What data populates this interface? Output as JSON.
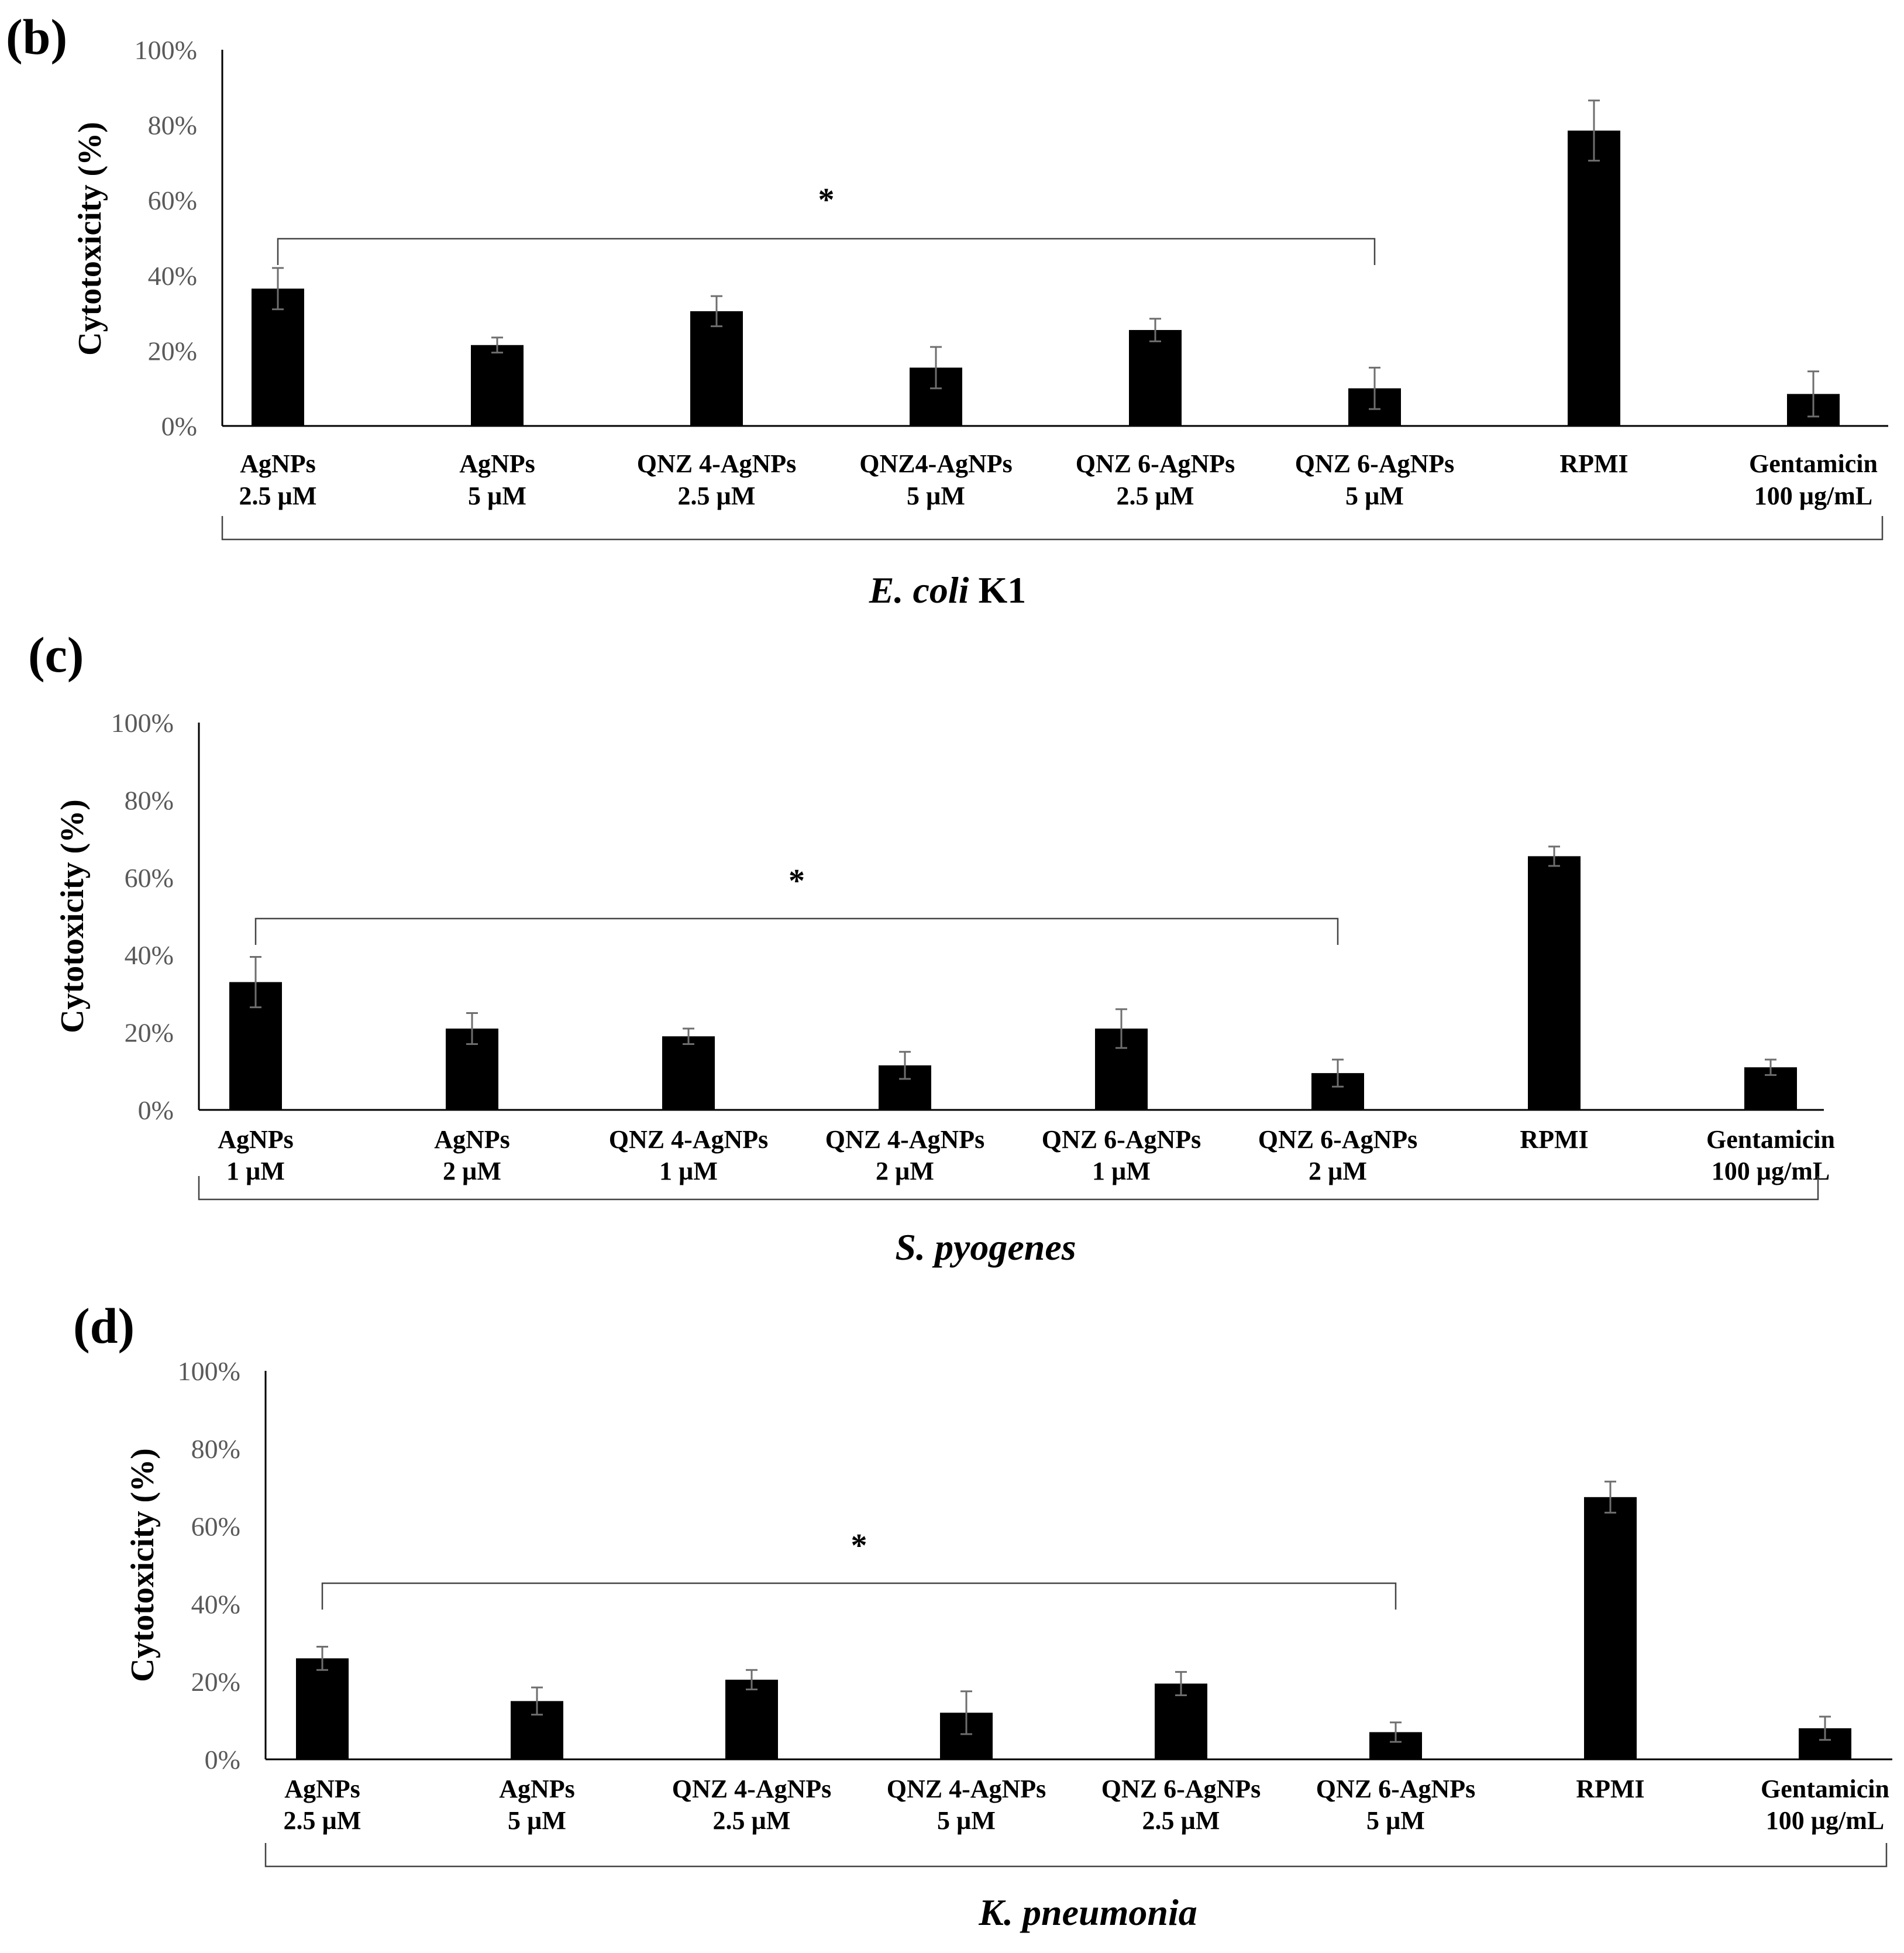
{
  "chart_data": [
    {
      "type": "bar",
      "panel_label": "(b)",
      "organism": {
        "italic": "E. coli",
        "plain": " K1"
      },
      "ylabel": "Cytotoxicity (%)",
      "yticks": [
        "0%",
        "20%",
        "40%",
        "60%",
        "80%",
        "100%"
      ],
      "ylim": [
        0,
        100
      ],
      "categories": [
        [
          "AgNPs",
          "2.5 µM"
        ],
        [
          "AgNPs",
          "5 µM"
        ],
        [
          "QNZ 4-AgNPs",
          "2.5 µM"
        ],
        [
          "QNZ4-AgNPs",
          "5 µM"
        ],
        [
          "QNZ 6-AgNPs",
          "2.5 µM"
        ],
        [
          "QNZ 6-AgNPs",
          "5 µM"
        ],
        [
          "RPMI",
          ""
        ],
        [
          "Gentamicin",
          "100 µg/mL"
        ]
      ],
      "values": [
        36.5,
        21.5,
        30.5,
        15.5,
        25.5,
        10.0,
        78.5,
        8.5
      ],
      "errors": [
        5.5,
        2.0,
        4.0,
        5.5,
        3.0,
        5.5,
        8.0,
        6.0
      ],
      "significance": {
        "label": "*",
        "from": 0,
        "to": 5
      }
    },
    {
      "type": "bar",
      "panel_label": "(c)",
      "organism": {
        "italic": "S. pyogenes",
        "plain": ""
      },
      "ylabel": "Cytotoxicity (%)",
      "yticks": [
        "0%",
        "20%",
        "40%",
        "60%",
        "80%",
        "100%"
      ],
      "ylim": [
        0,
        100
      ],
      "categories": [
        [
          "AgNPs",
          "1 µM"
        ],
        [
          "AgNPs",
          "2 µM"
        ],
        [
          "QNZ 4-AgNPs",
          "1 µM"
        ],
        [
          "QNZ 4-AgNPs",
          "2 µM"
        ],
        [
          "QNZ 6-AgNPs",
          "1 µM"
        ],
        [
          "QNZ 6-AgNPs",
          "2 µM"
        ],
        [
          "RPMI",
          ""
        ],
        [
          "Gentamicin",
          "100 µg/mL"
        ]
      ],
      "values": [
        33.0,
        21.0,
        19.0,
        11.5,
        21.0,
        9.5,
        65.5,
        11.0
      ],
      "errors": [
        6.5,
        4.0,
        2.0,
        3.5,
        5.0,
        3.5,
        2.5,
        2.0
      ],
      "significance": {
        "label": "*",
        "from": 0,
        "to": 5
      }
    },
    {
      "type": "bar",
      "panel_label": "(d)",
      "organism": {
        "italic": "K. pneumonia",
        "plain": ""
      },
      "ylabel": "Cytotoxicity (%)",
      "yticks": [
        "0%",
        "20%",
        "40%",
        "60%",
        "80%",
        "100%"
      ],
      "ylim": [
        0,
        100
      ],
      "categories": [
        [
          "AgNPs",
          "2.5 µM"
        ],
        [
          "AgNPs",
          "5 µM"
        ],
        [
          "QNZ 4-AgNPs",
          "2.5 µM"
        ],
        [
          "QNZ 4-AgNPs",
          "5 µM"
        ],
        [
          "QNZ 6-AgNPs",
          "2.5 µM"
        ],
        [
          "QNZ 6-AgNPs",
          "5 µM"
        ],
        [
          "RPMI",
          ""
        ],
        [
          "Gentamicin",
          "100 µg/mL"
        ]
      ],
      "values": [
        26.0,
        15.0,
        20.5,
        12.0,
        19.5,
        7.0,
        67.5,
        8.0
      ],
      "errors": [
        3.0,
        3.5,
        2.5,
        5.5,
        3.0,
        2.5,
        4.0,
        3.0
      ],
      "significance": {
        "label": "*",
        "from": 0,
        "to": 5
      }
    }
  ]
}
